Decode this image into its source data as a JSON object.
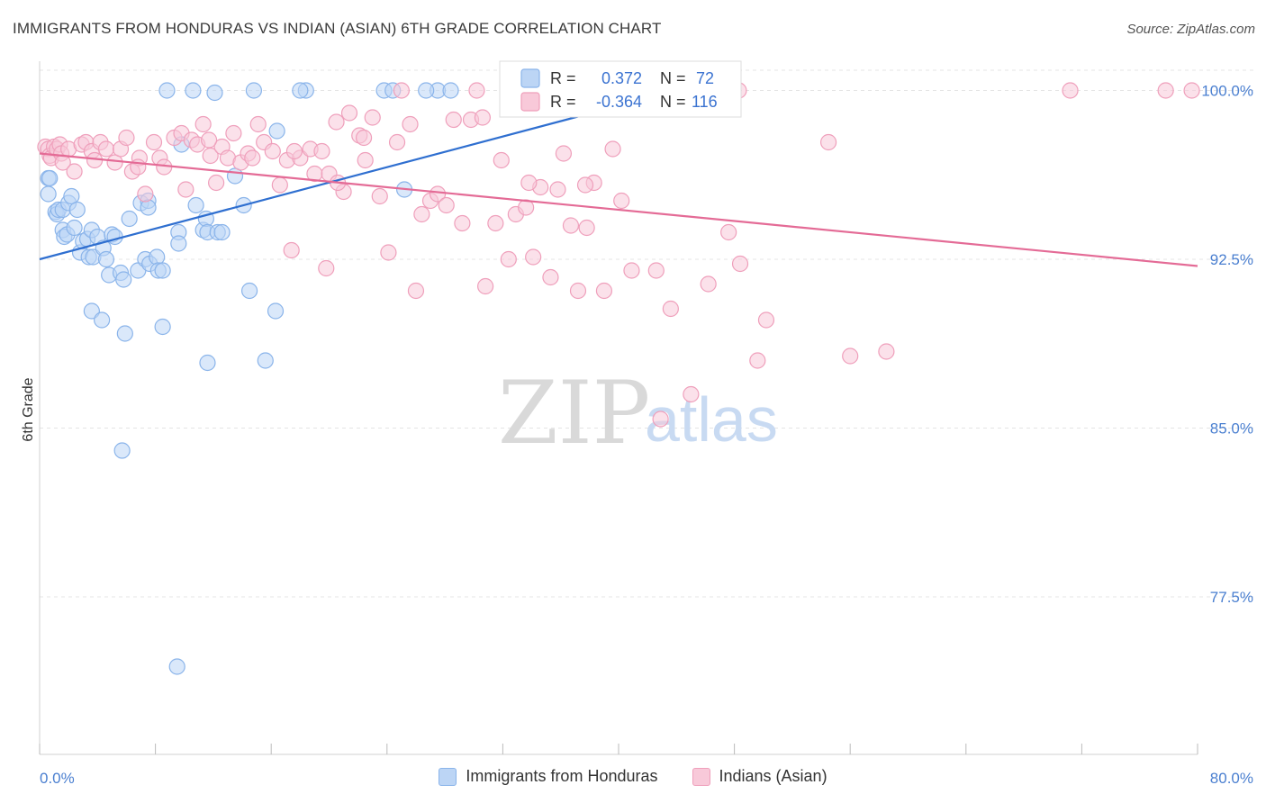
{
  "title": "IMMIGRANTS FROM HONDURAS VS INDIAN (ASIAN) 6TH GRADE CORRELATION CHART",
  "source": "Source: ZipAtlas.com",
  "watermark": {
    "zip": "ZIP",
    "atlas": "atlas"
  },
  "legend_stats": [
    {
      "r_label": "R =",
      "r_value": "0.372",
      "n_label": "N =",
      "n_value": "72",
      "color": "#8ab4ea",
      "fill": "#bcd5f5"
    },
    {
      "r_label": "R =",
      "r_value": "-0.364",
      "n_label": "N =",
      "n_value": "116",
      "color": "#ef9fbb",
      "fill": "#f8c9d9"
    }
  ],
  "bottom_legend": [
    {
      "label": "Immigrants from Honduras",
      "color": "#8ab4ea",
      "fill": "#bcd5f5"
    },
    {
      "label": "Indians (Asian)",
      "color": "#ef9fbb",
      "fill": "#f8c9d9"
    }
  ],
  "chart_data": {
    "type": "scatter",
    "title": "IMMIGRANTS FROM HONDURAS VS INDIAN (ASIAN) 6TH GRADE CORRELATION CHART",
    "xlabel": "",
    "ylabel": "6th Grade",
    "x_tick_labels": [
      "0.0%",
      "80.0%"
    ],
    "y_tick_labels": [
      "100.0%",
      "92.5%",
      "85.0%",
      "77.5%"
    ],
    "y_tick_values": [
      100.0,
      92.5,
      85.0,
      77.5
    ],
    "xlim": [
      0,
      80
    ],
    "ylim": [
      70.5,
      101.3
    ],
    "grid": true,
    "legend_position": "top-center",
    "series": [
      {
        "name": "Immigrants from Honduras",
        "color": "#8ab4ea",
        "line_color": "#2f6fd0",
        "trend": {
          "x": [
            0,
            44
          ],
          "y": [
            92.5,
            100.0
          ]
        },
        "points": [
          [
            0.6,
            95.4
          ],
          [
            0.6,
            96.1
          ],
          [
            0.7,
            96.1
          ],
          [
            1.1,
            94.6
          ],
          [
            1.2,
            94.5
          ],
          [
            1.3,
            94.7
          ],
          [
            1.6,
            94.7
          ],
          [
            1.6,
            93.8
          ],
          [
            1.7,
            93.5
          ],
          [
            1.9,
            93.6
          ],
          [
            2.0,
            95.0
          ],
          [
            2.2,
            95.3
          ],
          [
            2.4,
            93.9
          ],
          [
            2.6,
            94.7
          ],
          [
            2.8,
            92.8
          ],
          [
            3.0,
            93.3
          ],
          [
            3.3,
            93.4
          ],
          [
            3.4,
            92.6
          ],
          [
            3.6,
            93.8
          ],
          [
            3.7,
            92.6
          ],
          [
            3.6,
            90.2
          ],
          [
            4.0,
            93.5
          ],
          [
            4.4,
            93.0
          ],
          [
            4.6,
            92.5
          ],
          [
            4.8,
            91.8
          ],
          [
            5.0,
            93.6
          ],
          [
            5.2,
            93.5
          ],
          [
            5.6,
            91.9
          ],
          [
            5.8,
            91.6
          ],
          [
            5.9,
            89.2
          ],
          [
            6.2,
            94.3
          ],
          [
            6.8,
            92.0
          ],
          [
            7.0,
            95.0
          ],
          [
            7.3,
            92.5
          ],
          [
            7.5,
            95.1
          ],
          [
            7.5,
            94.8
          ],
          [
            7.6,
            92.3
          ],
          [
            8.1,
            92.6
          ],
          [
            8.2,
            92.0
          ],
          [
            8.5,
            92.0
          ],
          [
            8.5,
            89.5
          ],
          [
            9.6,
            93.7
          ],
          [
            9.6,
            93.2
          ],
          [
            9.8,
            97.6
          ],
          [
            10.8,
            94.9
          ],
          [
            11.3,
            93.8
          ],
          [
            11.5,
            94.3
          ],
          [
            11.6,
            93.7
          ],
          [
            12.3,
            93.7
          ],
          [
            12.6,
            93.7
          ],
          [
            13.5,
            96.2
          ],
          [
            14.1,
            94.9
          ],
          [
            14.5,
            91.1
          ],
          [
            15.6,
            88.0
          ],
          [
            16.3,
            90.2
          ],
          [
            16.4,
            98.2
          ],
          [
            18.4,
            100.0
          ],
          [
            18.0,
            100.0
          ],
          [
            8.8,
            100.0
          ],
          [
            10.6,
            100.0
          ],
          [
            12.1,
            99.9
          ],
          [
            14.8,
            100.0
          ],
          [
            23.8,
            100.0
          ],
          [
            24.4,
            100.0
          ],
          [
            27.5,
            100.0
          ],
          [
            28.4,
            100.0
          ],
          [
            25.2,
            95.6
          ],
          [
            26.7,
            100.0
          ],
          [
            4.3,
            89.8
          ],
          [
            11.6,
            87.9
          ],
          [
            5.7,
            84.0
          ],
          [
            9.5,
            74.4
          ]
        ]
      },
      {
        "name": "Indians (Asian)",
        "color": "#ef9fbb",
        "line_color": "#e46b96",
        "trend": {
          "x": [
            0,
            80
          ],
          "y": [
            97.2,
            92.2
          ]
        },
        "points": [
          [
            0.4,
            97.5
          ],
          [
            0.6,
            97.4
          ],
          [
            0.7,
            97.1
          ],
          [
            0.8,
            97.0
          ],
          [
            1.0,
            97.5
          ],
          [
            1.2,
            97.4
          ],
          [
            1.4,
            97.6
          ],
          [
            1.5,
            97.2
          ],
          [
            1.6,
            96.8
          ],
          [
            2.0,
            97.4
          ],
          [
            2.4,
            96.4
          ],
          [
            2.9,
            97.6
          ],
          [
            3.2,
            97.7
          ],
          [
            3.6,
            97.3
          ],
          [
            3.8,
            96.9
          ],
          [
            4.2,
            97.7
          ],
          [
            4.6,
            97.4
          ],
          [
            5.2,
            96.8
          ],
          [
            5.6,
            97.4
          ],
          [
            6.0,
            97.9
          ],
          [
            6.4,
            96.4
          ],
          [
            6.9,
            97.0
          ],
          [
            7.3,
            95.4
          ],
          [
            7.9,
            97.7
          ],
          [
            8.3,
            97.0
          ],
          [
            8.6,
            96.6
          ],
          [
            9.3,
            97.9
          ],
          [
            9.8,
            98.1
          ],
          [
            10.1,
            95.6
          ],
          [
            10.5,
            97.8
          ],
          [
            10.9,
            97.6
          ],
          [
            11.3,
            98.5
          ],
          [
            11.8,
            97.1
          ],
          [
            12.2,
            95.9
          ],
          [
            12.6,
            97.5
          ],
          [
            13.0,
            97.0
          ],
          [
            13.4,
            98.1
          ],
          [
            13.9,
            96.8
          ],
          [
            14.4,
            97.2
          ],
          [
            14.7,
            97.0
          ],
          [
            15.1,
            98.5
          ],
          [
            15.5,
            97.7
          ],
          [
            16.1,
            97.3
          ],
          [
            16.6,
            95.8
          ],
          [
            17.1,
            96.9
          ],
          [
            17.4,
            92.9
          ],
          [
            18.0,
            97.0
          ],
          [
            18.7,
            97.4
          ],
          [
            19.0,
            96.3
          ],
          [
            19.5,
            97.3
          ],
          [
            19.8,
            92.1
          ],
          [
            20.0,
            96.3
          ],
          [
            20.5,
            98.6
          ],
          [
            21.0,
            95.5
          ],
          [
            21.4,
            99.0
          ],
          [
            22.1,
            98.0
          ],
          [
            22.4,
            97.9
          ],
          [
            23.0,
            98.8
          ],
          [
            23.5,
            95.3
          ],
          [
            24.1,
            92.8
          ],
          [
            24.7,
            97.7
          ],
          [
            25.0,
            100.0
          ],
          [
            25.6,
            98.5
          ],
          [
            26.0,
            91.1
          ],
          [
            26.4,
            94.5
          ],
          [
            27.0,
            95.1
          ],
          [
            27.5,
            95.4
          ],
          [
            28.1,
            94.9
          ],
          [
            28.6,
            98.7
          ],
          [
            29.2,
            94.1
          ],
          [
            29.8,
            98.7
          ],
          [
            30.2,
            100.0
          ],
          [
            30.8,
            91.3
          ],
          [
            31.5,
            94.1
          ],
          [
            31.9,
            96.9
          ],
          [
            32.4,
            92.5
          ],
          [
            32.9,
            94.5
          ],
          [
            33.6,
            94.8
          ],
          [
            34.1,
            92.6
          ],
          [
            34.6,
            95.7
          ],
          [
            35.3,
            91.7
          ],
          [
            35.8,
            95.6
          ],
          [
            36.2,
            97.2
          ],
          [
            36.7,
            94.0
          ],
          [
            37.2,
            91.1
          ],
          [
            37.8,
            93.9
          ],
          [
            38.3,
            95.9
          ],
          [
            39.0,
            91.1
          ],
          [
            39.6,
            97.4
          ],
          [
            40.2,
            95.1
          ],
          [
            40.9,
            92.0
          ],
          [
            42.6,
            92.0
          ],
          [
            43.6,
            90.3
          ],
          [
            45.0,
            86.5
          ],
          [
            46.2,
            91.4
          ],
          [
            47.6,
            93.7
          ],
          [
            48.4,
            92.3
          ],
          [
            49.6,
            88.0
          ],
          [
            50.2,
            89.8
          ],
          [
            54.5,
            97.7
          ],
          [
            56.0,
            88.2
          ],
          [
            58.5,
            88.4
          ],
          [
            42.9,
            85.4
          ],
          [
            44.0,
            100.0
          ],
          [
            48.3,
            100.0
          ],
          [
            77.8,
            100.0
          ],
          [
            79.6,
            100.0
          ],
          [
            71.2,
            100.0
          ],
          [
            37.7,
            95.8
          ],
          [
            33.8,
            95.9
          ],
          [
            30.6,
            98.8
          ],
          [
            22.5,
            96.9
          ],
          [
            17.6,
            97.3
          ],
          [
            20.6,
            95.9
          ],
          [
            11.7,
            97.8
          ],
          [
            6.8,
            96.6
          ]
        ]
      }
    ]
  }
}
